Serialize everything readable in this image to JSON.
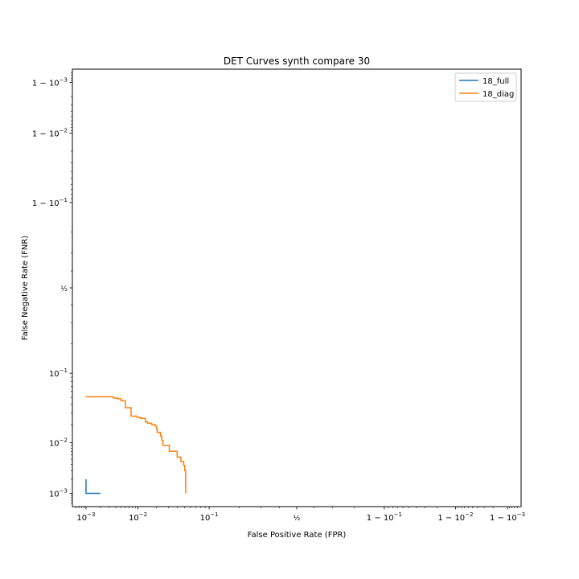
{
  "chart_data": {
    "type": "line",
    "title": "DET Curves synth compare 30",
    "xlabel": "False Positive Rate (FPR)",
    "ylabel": "False Negative Rate (FNR)",
    "scale": "probit",
    "xlim": [
      0.0005,
      0.9995
    ],
    "ylim": [
      0.0005,
      0.9995
    ],
    "xticks": [
      {
        "value": 0.001,
        "base": "10",
        "exp": "−3",
        "prefix": ""
      },
      {
        "value": 0.01,
        "base": "10",
        "exp": "−2",
        "prefix": ""
      },
      {
        "value": 0.1,
        "base": "10",
        "exp": "−1",
        "prefix": ""
      },
      {
        "value": 0.5,
        "frac": true
      },
      {
        "value": 0.9,
        "base": "10",
        "exp": "−1",
        "prefix": "1 − "
      },
      {
        "value": 0.99,
        "base": "10",
        "exp": "−2",
        "prefix": "1 − "
      },
      {
        "value": 0.999,
        "base": "10",
        "exp": "−3",
        "prefix": "1 − "
      }
    ],
    "yticks": [
      {
        "value": 0.001,
        "base": "10",
        "exp": "−3",
        "prefix": ""
      },
      {
        "value": 0.01,
        "base": "10",
        "exp": "−2",
        "prefix": ""
      },
      {
        "value": 0.1,
        "base": "10",
        "exp": "−1",
        "prefix": ""
      },
      {
        "value": 0.5,
        "frac": true
      },
      {
        "value": 0.9,
        "base": "10",
        "exp": "−1",
        "prefix": "1 − "
      },
      {
        "value": 0.99,
        "base": "10",
        "exp": "−2",
        "prefix": "1 − "
      },
      {
        "value": 0.999,
        "base": "10",
        "exp": "−3",
        "prefix": "1 − "
      }
    ],
    "legend": {
      "location": "top-right"
    },
    "series": [
      {
        "name": "18_full",
        "color": "#1f77b4",
        "points": [
          [
            0.001,
            0.002
          ],
          [
            0.001,
            0.001
          ],
          [
            0.002,
            0.001
          ]
        ]
      },
      {
        "name": "18_diag",
        "color": "#ff7f0e",
        "points": [
          [
            0.001,
            0.052
          ],
          [
            0.001,
            0.051
          ],
          [
            0.0036,
            0.051
          ],
          [
            0.0036,
            0.049
          ],
          [
            0.0043,
            0.049
          ],
          [
            0.0043,
            0.048
          ],
          [
            0.005,
            0.048
          ],
          [
            0.005,
            0.045
          ],
          [
            0.006,
            0.045
          ],
          [
            0.006,
            0.036
          ],
          [
            0.0076,
            0.036
          ],
          [
            0.0076,
            0.027
          ],
          [
            0.0096,
            0.027
          ],
          [
            0.0096,
            0.026
          ],
          [
            0.011,
            0.026
          ],
          [
            0.011,
            0.025
          ],
          [
            0.0133,
            0.025
          ],
          [
            0.0133,
            0.022
          ],
          [
            0.0145,
            0.022
          ],
          [
            0.0145,
            0.021
          ],
          [
            0.0168,
            0.021
          ],
          [
            0.0168,
            0.02
          ],
          [
            0.019,
            0.02
          ],
          [
            0.019,
            0.019
          ],
          [
            0.02,
            0.019
          ],
          [
            0.02,
            0.017
          ],
          [
            0.0205,
            0.017
          ],
          [
            0.0205,
            0.015
          ],
          [
            0.023,
            0.015
          ],
          [
            0.023,
            0.013
          ],
          [
            0.024,
            0.013
          ],
          [
            0.024,
            0.011
          ],
          [
            0.025,
            0.011
          ],
          [
            0.025,
            0.009
          ],
          [
            0.031,
            0.009
          ],
          [
            0.031,
            0.007
          ],
          [
            0.04,
            0.007
          ],
          [
            0.04,
            0.0055
          ],
          [
            0.045,
            0.0055
          ],
          [
            0.045,
            0.0045
          ],
          [
            0.049,
            0.0045
          ],
          [
            0.049,
            0.0038
          ],
          [
            0.0505,
            0.0038
          ],
          [
            0.0505,
            0.003
          ],
          [
            0.052,
            0.003
          ],
          [
            0.052,
            0.001
          ]
        ]
      }
    ]
  }
}
